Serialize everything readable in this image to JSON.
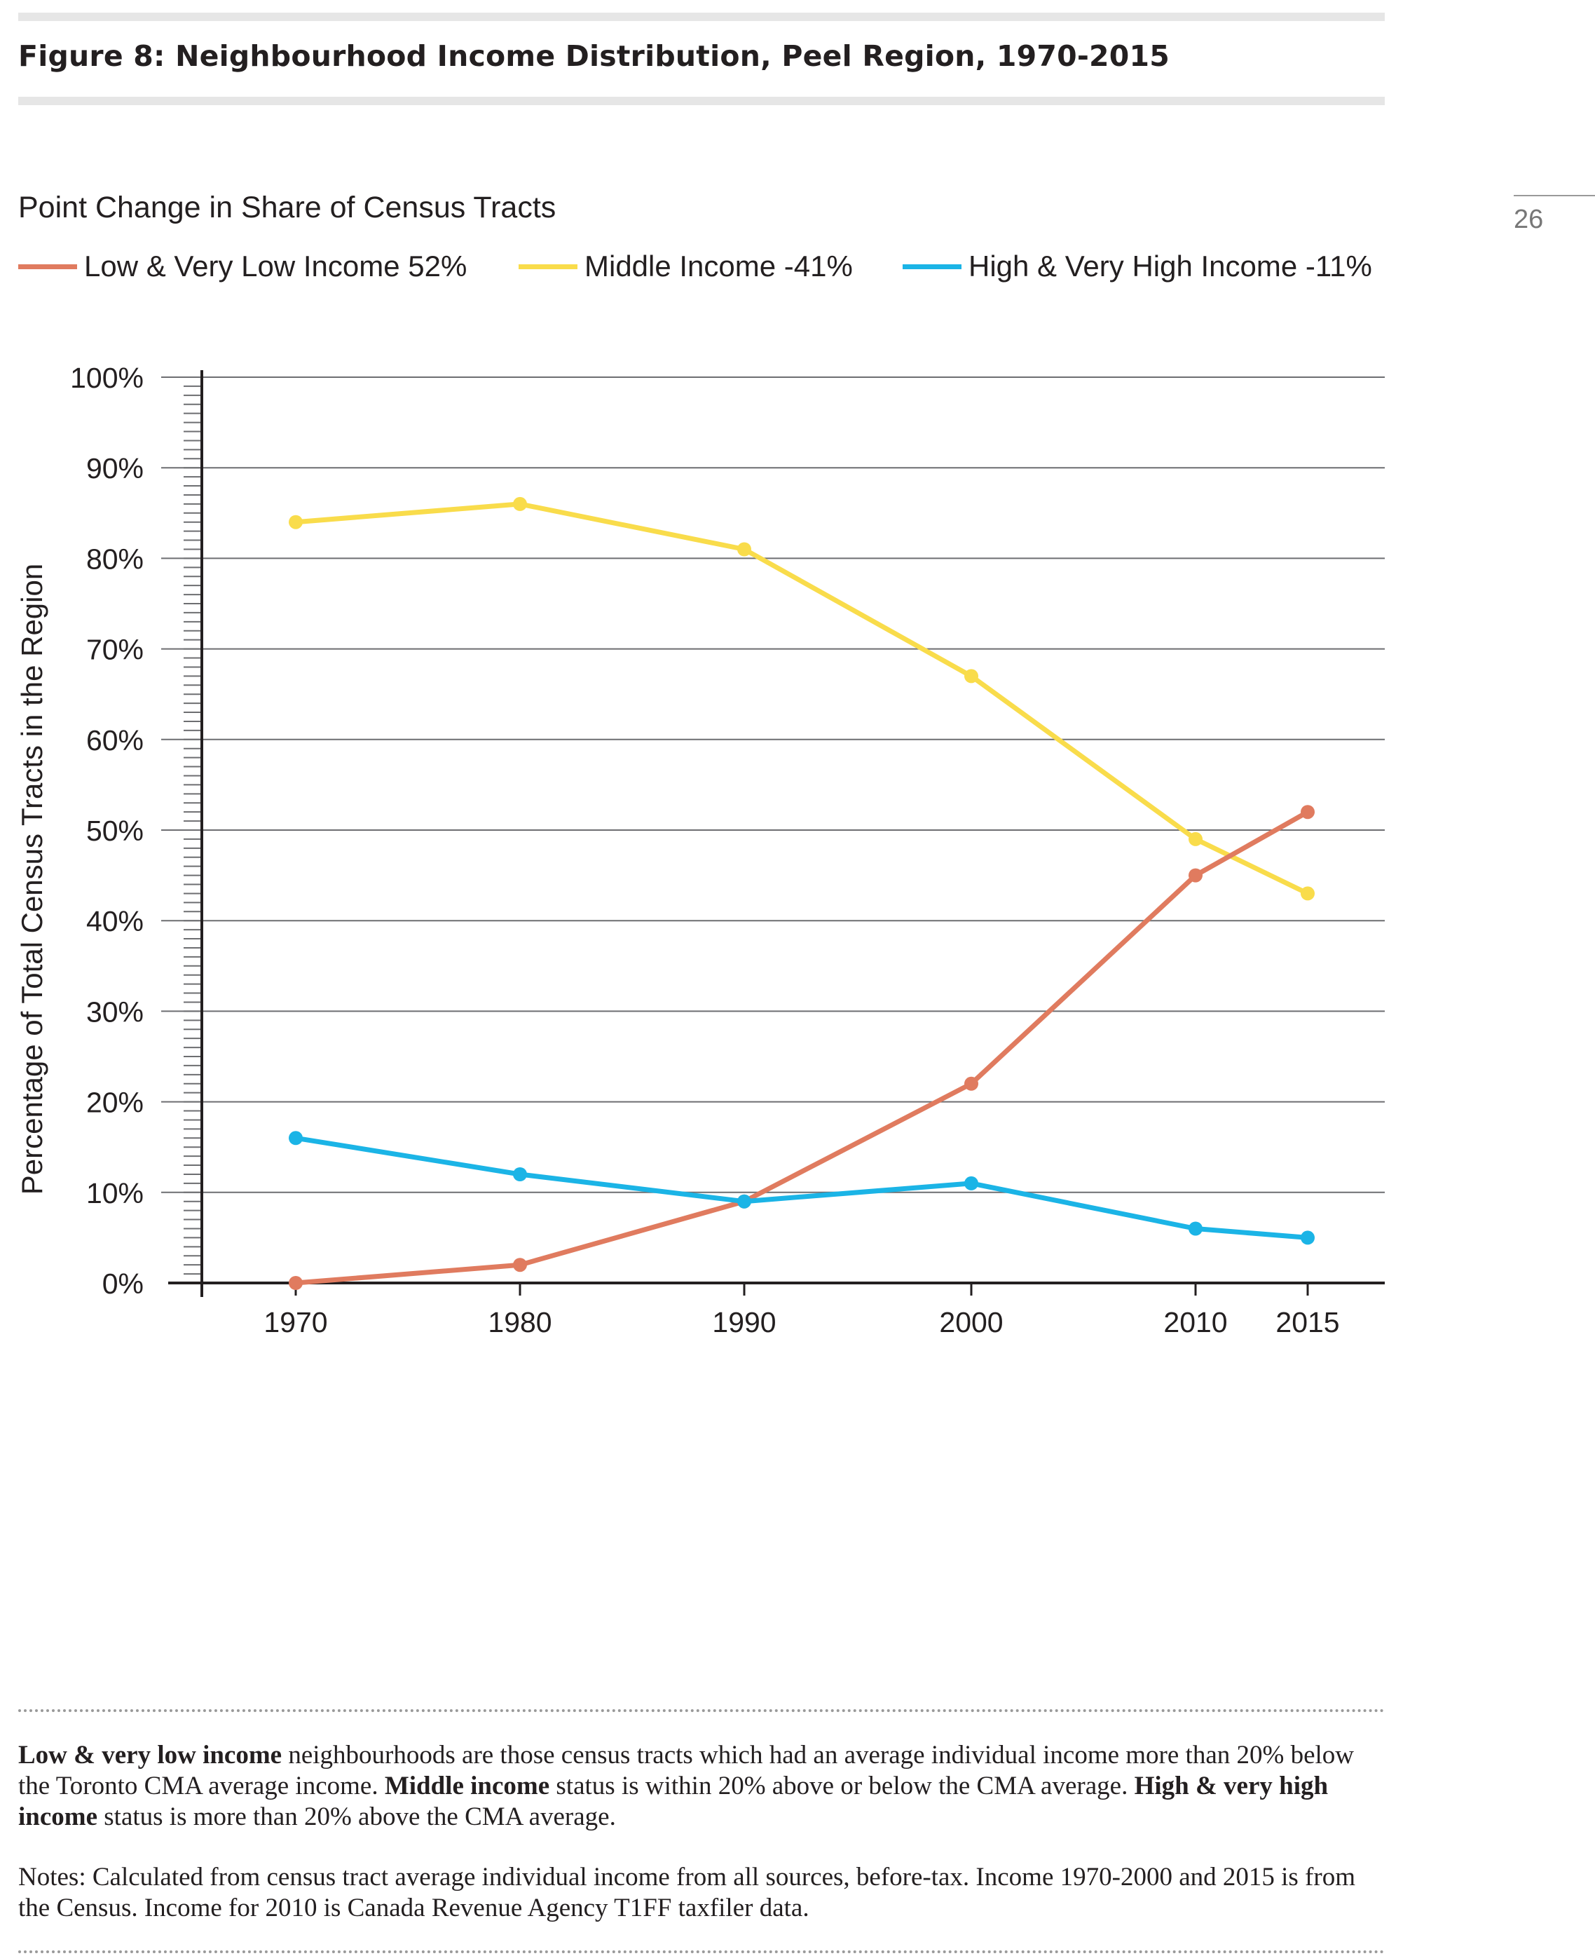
{
  "figure": {
    "title": "Figure 8: Neighbourhood Income Distribution, Peel Region, 1970-2015",
    "page_number": "26"
  },
  "chart": {
    "subtitle": "Point Change in Share of Census Tracts",
    "legend": [
      {
        "label": "Low & Very Low Income 52%",
        "color": "#e07b5f"
      },
      {
        "label": "Middle Income -41%",
        "color": "#f9dc4b"
      },
      {
        "label": "High & Very High Income -11%",
        "color": "#1bb4e6"
      }
    ]
  },
  "chart_data": {
    "type": "line",
    "title": "Point Change in Share of Census Tracts",
    "xlabel": "",
    "ylabel": "Percentage of Total Census Tracts in the Region",
    "x": [
      1970,
      1980,
      1990,
      2000,
      2010,
      2015
    ],
    "x_tick_labels": [
      "1970",
      "1980",
      "1990",
      "2000",
      "2010",
      "2015"
    ],
    "ylim": [
      0,
      100
    ],
    "y_ticks": [
      0,
      10,
      20,
      30,
      40,
      50,
      60,
      70,
      80,
      90,
      100
    ],
    "y_tick_labels": [
      "0%",
      "10%",
      "20%",
      "30%",
      "40%",
      "50%",
      "60%",
      "70%",
      "80%",
      "90%",
      "100%"
    ],
    "grid": true,
    "legend_position": "top-left",
    "series": [
      {
        "name": "Low & Very Low Income 52%",
        "color": "#e07b5f",
        "values": [
          0,
          2,
          9,
          22,
          45,
          52
        ]
      },
      {
        "name": "Middle Income -41%",
        "color": "#f9dc4b",
        "values": [
          84,
          86,
          81,
          67,
          49,
          43
        ]
      },
      {
        "name": "High & Very High Income -11%",
        "color": "#1bb4e6",
        "values": [
          16,
          12,
          9,
          11,
          6,
          5
        ]
      }
    ]
  },
  "notes": {
    "definition": {
      "low_bold": "Low & very low income",
      "low_text": " neighbourhoods are those census tracts which had an average individual income more than 20% below the Toronto CMA average income. ",
      "middle_bold": "Middle income",
      "middle_text": " status is within 20% above or below the CMA average. ",
      "high_bold": "High & very high income",
      "high_text": " status is more than 20% above the CMA average."
    },
    "source": "Notes: Calculated from census tract average individual income from all sources, before-tax. Income 1970-2000 and 2015 is from the Census. Income for 2010 is Canada Revenue Agency T1FF taxfiler data."
  }
}
